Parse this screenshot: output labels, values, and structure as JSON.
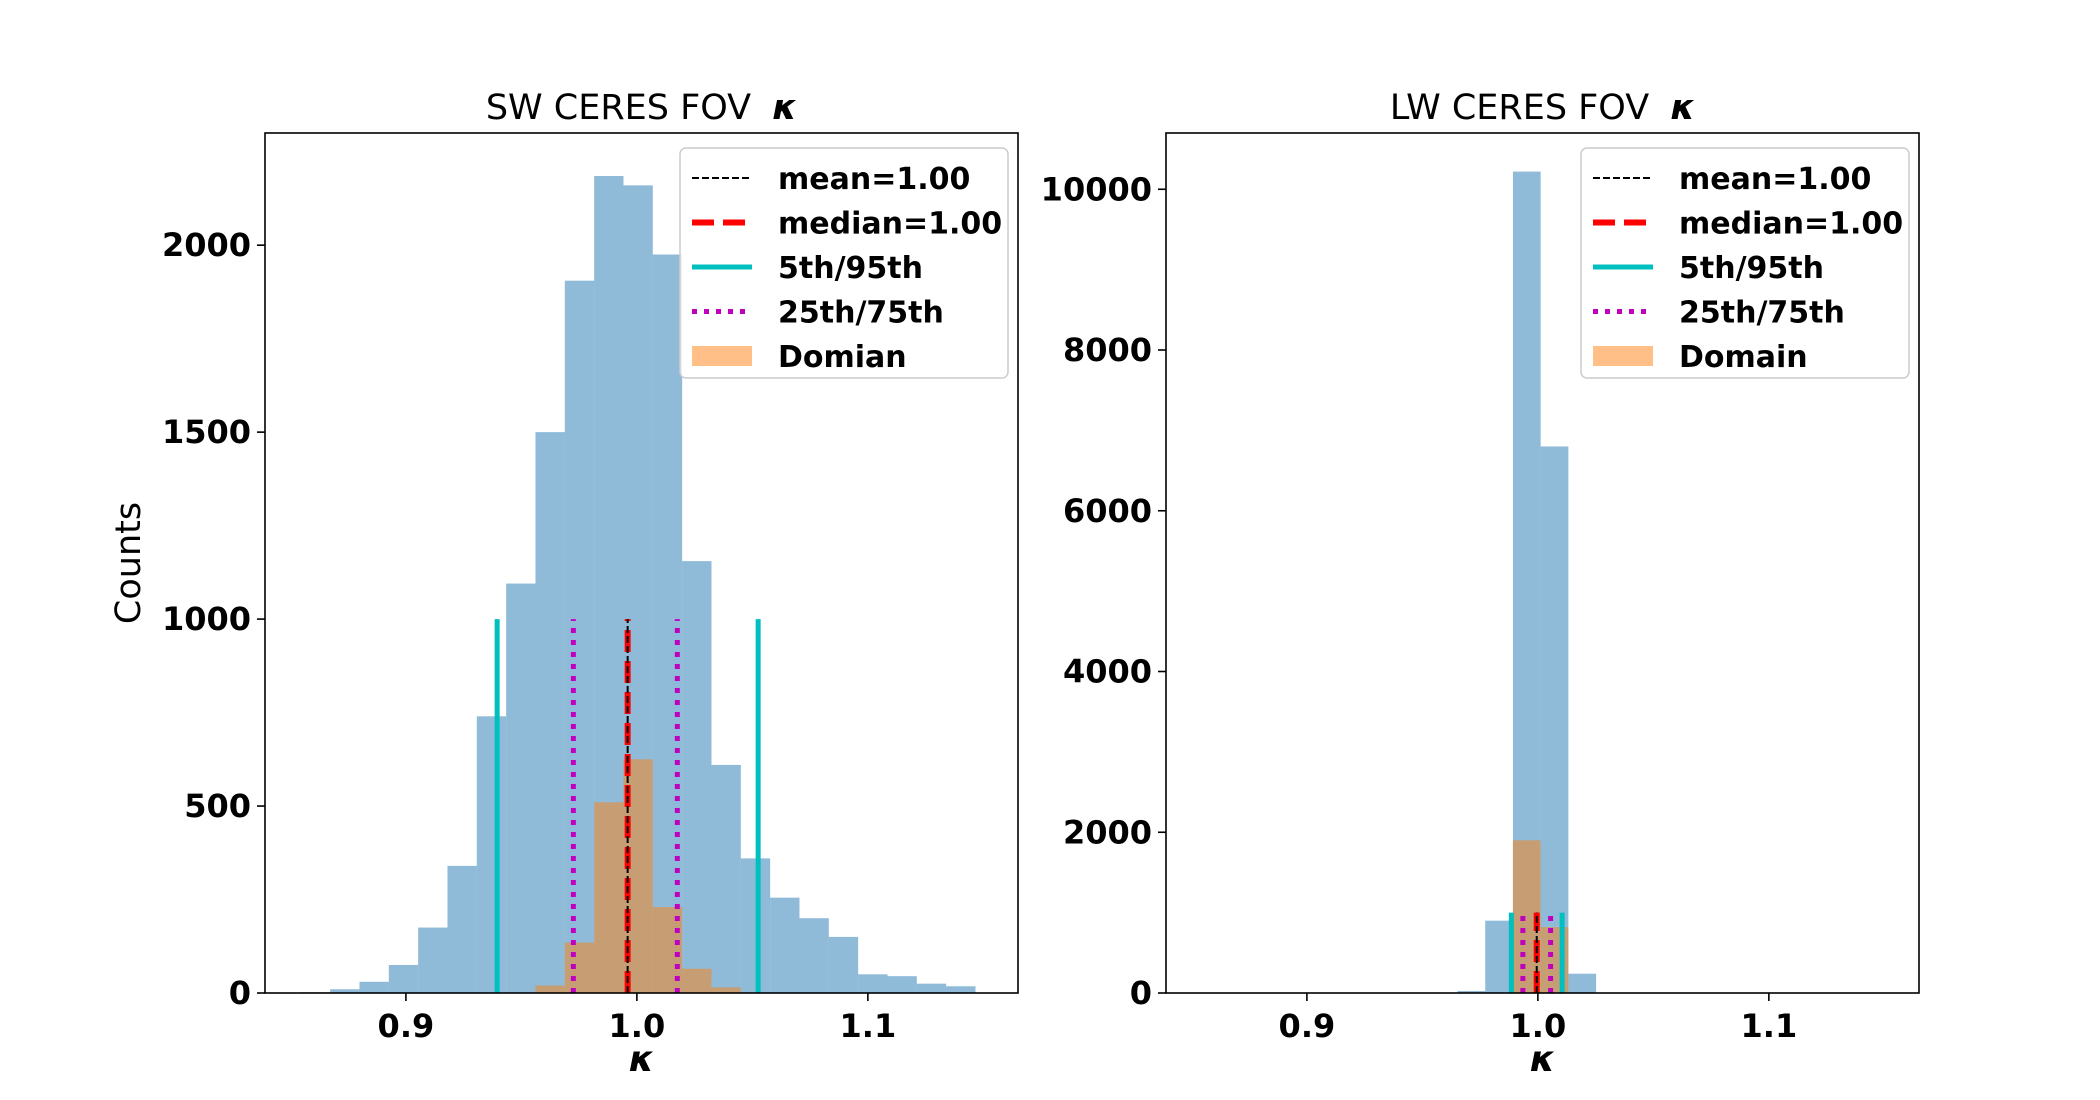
{
  "colors": {
    "ceres_hist": "#1f77b4",
    "domain_hist": "#ff7f0e",
    "mean_line": "#000000",
    "median_line": "#ff0000",
    "p5_95_line": "#00bfbf",
    "p25_75_line": "#bf00bf",
    "axes": "#000000",
    "background": "#ffffff"
  },
  "chart_data": [
    {
      "type": "bar",
      "title": "SW CERES FOV",
      "title_symbol": "κ",
      "xlabel": "κ",
      "ylabel": "Counts",
      "xlim": [
        0.839,
        1.165
      ],
      "ylim": [
        0,
        2300
      ],
      "xticks": [
        0.9,
        1.0,
        1.1
      ],
      "xtick_labels": [
        "0.9",
        "1.0",
        "1.1"
      ],
      "yticks": [
        0,
        500,
        1000,
        1500,
        2000
      ],
      "ytick_labels": [
        "0",
        "500",
        "1000",
        "1500",
        "2000"
      ],
      "grid": false,
      "legend_position": "upper right",
      "bin_edges": [
        0.8545,
        0.8672,
        0.8799,
        0.8926,
        0.9053,
        0.918,
        0.9307,
        0.9434,
        0.9561,
        0.9688,
        0.9815,
        0.9942,
        1.0069,
        1.0196,
        1.0323,
        1.045,
        1.0577,
        1.0704,
        1.0831,
        1.0958,
        1.1085,
        1.1212,
        1.1339,
        1.1466
      ],
      "series": [
        {
          "name": "",
          "kind": "histogram",
          "values": [
            2,
            10,
            30,
            75,
            175,
            340,
            740,
            1095,
            1500,
            1905,
            2185,
            2160,
            1975,
            1155,
            610,
            360,
            255,
            200,
            150,
            50,
            45,
            25,
            18
          ]
        },
        {
          "name": "Domian",
          "kind": "histogram",
          "values": [
            0,
            0,
            0,
            0,
            0,
            0,
            0,
            0,
            20,
            135,
            510,
            625,
            230,
            65,
            15,
            0,
            0,
            0,
            0,
            0,
            0,
            0,
            0
          ]
        }
      ],
      "lines": [
        {
          "name": "mean=1.00",
          "x": [
            0.996
          ],
          "y_max": 1000,
          "style": "thin-dashed"
        },
        {
          "name": "median=1.00",
          "x": [
            0.996
          ],
          "y_max": 1000,
          "style": "thick-dashed"
        },
        {
          "name": "5th/95th",
          "x": [
            0.9395,
            1.0525
          ],
          "y_max": 1000,
          "style": "solid"
        },
        {
          "name": "25th/75th",
          "x": [
            0.9725,
            1.0175
          ],
          "y_max": 1000,
          "style": "dotted"
        }
      ],
      "legend": [
        {
          "label": "mean=1.00",
          "key": "mean"
        },
        {
          "label": "median=1.00",
          "key": "median"
        },
        {
          "label": "5th/95th",
          "key": "p5_95"
        },
        {
          "label": "25th/75th",
          "key": "p25_75"
        },
        {
          "label": "Domian",
          "key": "domain"
        }
      ]
    },
    {
      "type": "bar",
      "title": "LW CERES FOV",
      "title_symbol": "κ",
      "xlabel": "κ",
      "ylabel": "",
      "xlim": [
        0.839,
        1.165
      ],
      "ylim": [
        0,
        10700
      ],
      "xticks": [
        0.9,
        1.0,
        1.1
      ],
      "xtick_labels": [
        "0.9",
        "1.0",
        "1.1"
      ],
      "yticks": [
        0,
        2000,
        4000,
        6000,
        8000,
        10000
      ],
      "ytick_labels": [
        "0",
        "2000",
        "4000",
        "6000",
        "8000",
        "10000"
      ],
      "grid": false,
      "legend_position": "upper right",
      "bin_edges": [
        0.9652,
        0.9772,
        0.9892,
        1.0012,
        1.0132,
        1.0252
      ],
      "series": [
        {
          "name": "",
          "kind": "histogram",
          "values": [
            25,
            900,
            10220,
            6800,
            240
          ]
        },
        {
          "name": "Domain",
          "kind": "histogram",
          "values": [
            0,
            0,
            1900,
            820,
            0
          ]
        }
      ],
      "lines": [
        {
          "name": "mean=1.00",
          "x": [
            0.9995
          ],
          "y_max": 1000,
          "style": "thin-dashed"
        },
        {
          "name": "median=1.00",
          "x": [
            0.9995
          ],
          "y_max": 1000,
          "style": "thick-dashed"
        },
        {
          "name": "5th/95th",
          "x": [
            0.9885,
            1.0105
          ],
          "y_max": 1000,
          "style": "solid"
        },
        {
          "name": "25th/75th",
          "x": [
            0.9935,
            1.0055
          ],
          "y_max": 1000,
          "style": "dotted"
        }
      ],
      "legend": [
        {
          "label": "mean=1.00",
          "key": "mean"
        },
        {
          "label": "median=1.00",
          "key": "median"
        },
        {
          "label": "5th/95th",
          "key": "p5_95"
        },
        {
          "label": "25th/75th",
          "key": "p25_75"
        },
        {
          "label": "Domain",
          "key": "domain"
        }
      ]
    }
  ]
}
